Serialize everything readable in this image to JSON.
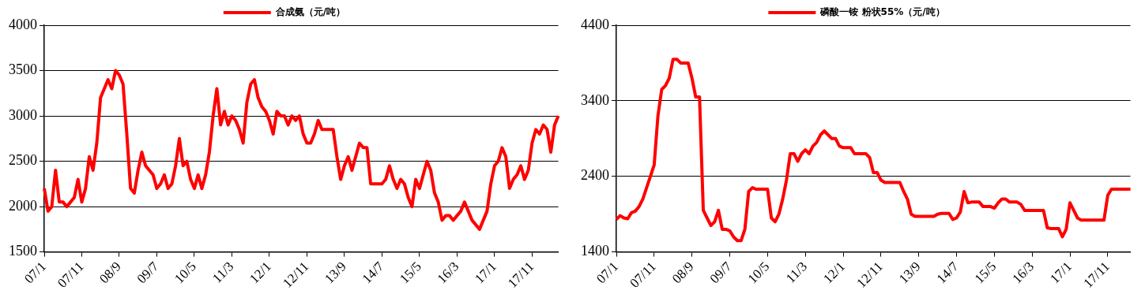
{
  "chart_data": [
    {
      "type": "line",
      "legend": "top",
      "grid": "y",
      "marker": "none",
      "line_style": "solid",
      "ylim": [
        1500,
        4000
      ],
      "yticks": [
        1500,
        2000,
        2500,
        3000,
        3500,
        4000
      ],
      "categories": [
        "07/1",
        null,
        null,
        null,
        null,
        null,
        null,
        null,
        null,
        null,
        "07/11",
        null,
        null,
        null,
        null,
        null,
        null,
        null,
        null,
        null,
        "08/9",
        null,
        null,
        null,
        null,
        null,
        null,
        null,
        null,
        null,
        "09/7",
        null,
        null,
        null,
        null,
        null,
        null,
        null,
        null,
        null,
        "10/5",
        null,
        null,
        null,
        null,
        null,
        null,
        null,
        null,
        null,
        "11/3",
        null,
        null,
        null,
        null,
        null,
        null,
        null,
        null,
        null,
        "12/1",
        null,
        null,
        null,
        null,
        null,
        null,
        null,
        null,
        null,
        "12/11",
        null,
        null,
        null,
        null,
        null,
        null,
        null,
        null,
        null,
        "13/9",
        null,
        null,
        null,
        null,
        null,
        null,
        null,
        null,
        null,
        "14/7",
        null,
        null,
        null,
        null,
        null,
        null,
        null,
        null,
        null,
        "15/5",
        null,
        null,
        null,
        null,
        null,
        null,
        null,
        null,
        null,
        "16/3",
        null,
        null,
        null,
        null,
        null,
        null,
        null,
        null,
        null,
        "17/1",
        null,
        null,
        null,
        null,
        null,
        null,
        null,
        null,
        null,
        "17/11",
        null,
        null,
        null,
        null,
        null,
        null,
        null
      ],
      "series": [
        {
          "name": "合成氨（元/吨）",
          "color": "#ff0000",
          "values": [
            2200,
            1950,
            2000,
            2400,
            2050,
            2050,
            2000,
            2050,
            2100,
            2300,
            2050,
            2200,
            2550,
            2400,
            2700,
            3200,
            3300,
            3400,
            3300,
            3500,
            3450,
            3350,
            2800,
            2200,
            2150,
            2400,
            2600,
            2450,
            2400,
            2350,
            2200,
            2250,
            2350,
            2200,
            2250,
            2450,
            2750,
            2450,
            2500,
            2300,
            2200,
            2350,
            2200,
            2350,
            2600,
            3000,
            3300,
            2900,
            3050,
            2900,
            3000,
            2950,
            2850,
            2700,
            3150,
            3350,
            3400,
            3200,
            3100,
            3050,
            2950,
            2800,
            3050,
            3000,
            3000,
            2900,
            3000,
            2950,
            3000,
            2800,
            2700,
            2700,
            2800,
            2950,
            2850,
            2850,
            2850,
            2850,
            2550,
            2300,
            2450,
            2550,
            2400,
            2550,
            2700,
            2650,
            2650,
            2250,
            2250,
            2250,
            2250,
            2300,
            2450,
            2300,
            2200,
            2300,
            2250,
            2100,
            2000,
            2300,
            2200,
            2350,
            2500,
            2400,
            2150,
            2050,
            1850,
            1900,
            1900,
            1850,
            1900,
            1950,
            2050,
            1950,
            1850,
            1800,
            1750,
            1850,
            1950,
            2250,
            2450,
            2500,
            2650,
            2550,
            2200,
            2300,
            2350,
            2450,
            2300,
            2400,
            2700,
            2850,
            2800,
            2900,
            2850,
            2600,
            2900,
            3000
          ]
        }
      ]
    },
    {
      "type": "line",
      "legend": "top",
      "grid": "y",
      "marker": "none",
      "line_style": "solid",
      "ylim": [
        1400,
        4400
      ],
      "yticks": [
        1400,
        2400,
        3400,
        4400
      ],
      "categories": [
        "07/1",
        null,
        null,
        null,
        null,
        null,
        null,
        null,
        null,
        null,
        "07/11",
        null,
        null,
        null,
        null,
        null,
        null,
        null,
        null,
        null,
        "08/9",
        null,
        null,
        null,
        null,
        null,
        null,
        null,
        null,
        null,
        "09/7",
        null,
        null,
        null,
        null,
        null,
        null,
        null,
        null,
        null,
        "10/5",
        null,
        null,
        null,
        null,
        null,
        null,
        null,
        null,
        null,
        "11/3",
        null,
        null,
        null,
        null,
        null,
        null,
        null,
        null,
        null,
        "12/1",
        null,
        null,
        null,
        null,
        null,
        null,
        null,
        null,
        null,
        "12/11",
        null,
        null,
        null,
        null,
        null,
        null,
        null,
        null,
        null,
        "13/9",
        null,
        null,
        null,
        null,
        null,
        null,
        null,
        null,
        null,
        "14/7",
        null,
        null,
        null,
        null,
        null,
        null,
        null,
        null,
        null,
        "15/5",
        null,
        null,
        null,
        null,
        null,
        null,
        null,
        null,
        null,
        "16/3",
        null,
        null,
        null,
        null,
        null,
        null,
        null,
        null,
        null,
        "17/1",
        null,
        null,
        null,
        null,
        null,
        null,
        null,
        null,
        null,
        "17/11",
        null,
        null,
        null,
        null,
        null,
        null
      ],
      "series": [
        {
          "name": "磷酸一铵 粉状55%（元/吨）",
          "color": "#ff0000",
          "values": [
            1830,
            1880,
            1850,
            1840,
            1920,
            1940,
            2000,
            2100,
            2250,
            2400,
            2550,
            3200,
            3550,
            3600,
            3700,
            3950,
            3950,
            3900,
            3900,
            3900,
            3700,
            3450,
            3450,
            1950,
            1850,
            1750,
            1800,
            1950,
            1700,
            1700,
            1680,
            1600,
            1550,
            1550,
            1700,
            2200,
            2250,
            2230,
            2230,
            2230,
            2230,
            1850,
            1800,
            1900,
            2100,
            2350,
            2700,
            2700,
            2600,
            2700,
            2750,
            2700,
            2800,
            2850,
            2950,
            3000,
            2950,
            2900,
            2900,
            2800,
            2780,
            2780,
            2780,
            2700,
            2700,
            2700,
            2700,
            2650,
            2450,
            2450,
            2350,
            2320,
            2320,
            2320,
            2320,
            2320,
            2200,
            2100,
            1900,
            1870,
            1870,
            1870,
            1870,
            1870,
            1870,
            1900,
            1910,
            1910,
            1910,
            1830,
            1850,
            1930,
            2200,
            2050,
            2060,
            2060,
            2060,
            2000,
            2000,
            2000,
            1980,
            2050,
            2100,
            2100,
            2060,
            2060,
            2060,
            2030,
            1950,
            1950,
            1950,
            1950,
            1950,
            1950,
            1720,
            1710,
            1710,
            1710,
            1600,
            1700,
            2050,
            1950,
            1850,
            1820,
            1820,
            1820,
            1820,
            1820,
            1820,
            1820,
            2150,
            2230,
            2230,
            2230,
            2230,
            2230,
            2230
          ]
        }
      ]
    }
  ]
}
